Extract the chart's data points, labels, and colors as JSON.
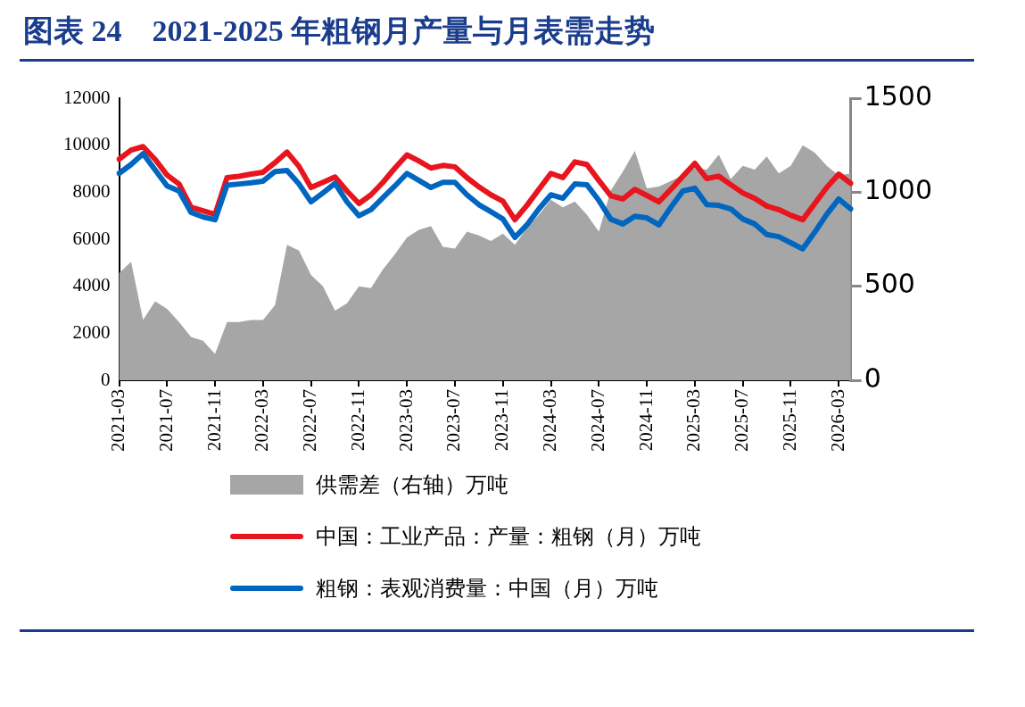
{
  "chart_data": {
    "type": "line",
    "title": "图表 24　2021-2025 年粗钢月产量与月表需走势",
    "categories": [
      "2021-03",
      null,
      null,
      null,
      "2021-07",
      null,
      null,
      null,
      "2021-11",
      null,
      null,
      null,
      "2022-03",
      null,
      null,
      null,
      "2022-07",
      null,
      null,
      null,
      "2022-11",
      null,
      null,
      null,
      "2023-03",
      null,
      null,
      null,
      "2023-07",
      null,
      null,
      null,
      "2023-11",
      null,
      null,
      null,
      "2024-03",
      null,
      null,
      null,
      "2024-07",
      null,
      null,
      null,
      "2024-11",
      null,
      null,
      null,
      "2025-03",
      null,
      null,
      null,
      "2025-07",
      null,
      null,
      null,
      "2025-11",
      null,
      null,
      null,
      "2026-03",
      null
    ],
    "series": [
      {
        "name": "供需差（右轴）万吨",
        "type": "area",
        "axis": "y2",
        "color": "#a6a6a6",
        "values": [
          570,
          630,
          320,
          420,
          380,
          310,
          230,
          210,
          140,
          310,
          310,
          320,
          320,
          400,
          720,
          690,
          560,
          500,
          370,
          410,
          500,
          490,
          590,
          670,
          760,
          800,
          820,
          710,
          700,
          790,
          770,
          740,
          780,
          720,
          810,
          880,
          960,
          920,
          950,
          880,
          790,
          1010,
          1110,
          1220,
          1020,
          1030,
          1060,
          1090,
          1130,
          1120,
          1200,
          1070,
          1140,
          1120,
          1190,
          1100,
          1140,
          1250,
          1210,
          1140,
          1090,
          1100
        ]
      },
      {
        "name": "中国：工业产品：产量：粗钢（月）万吨",
        "type": "line",
        "color": "#e8141e",
        "values": [
          9400,
          9790,
          9940,
          9400,
          8730,
          8350,
          7360,
          7210,
          7060,
          8620,
          8680,
          8770,
          8850,
          9260,
          9710,
          9100,
          8200,
          8420,
          8650,
          8050,
          7520,
          7890,
          8420,
          9030,
          9590,
          9330,
          9030,
          9140,
          9080,
          8620,
          8230,
          7890,
          7620,
          6830,
          7440,
          8120,
          8800,
          8620,
          9290,
          9180,
          8500,
          7850,
          7710,
          8120,
          7860,
          7590,
          8120,
          8680,
          9230,
          8580,
          8680,
          8320,
          7970,
          7740,
          7410,
          7260,
          7020,
          6830,
          7520,
          8200,
          8770,
          8380
        ]
      },
      {
        "name": "粗钢：表观消费量：中国（月）万吨",
        "type": "line",
        "color": "#0066bf",
        "values": [
          8800,
          9180,
          9640,
          8950,
          8270,
          8050,
          7140,
          6950,
          6830,
          8300,
          8350,
          8400,
          8470,
          8880,
          8920,
          8350,
          7590,
          7970,
          8380,
          7590,
          7000,
          7260,
          7770,
          8270,
          8800,
          8500,
          8200,
          8420,
          8420,
          7890,
          7470,
          7170,
          6860,
          6080,
          6610,
          7290,
          7890,
          7740,
          8350,
          8320,
          7650,
          6850,
          6650,
          6980,
          6910,
          6610,
          7360,
          8050,
          8170,
          7470,
          7440,
          7290,
          6860,
          6650,
          6200,
          6110,
          5850,
          5590,
          6300,
          7060,
          7710,
          7290
        ]
      }
    ],
    "ylim": [
      0,
      12000
    ],
    "yticks": [
      0,
      2000,
      4000,
      6000,
      8000,
      10000,
      12000
    ],
    "y2lim": [
      0,
      1500
    ],
    "y2ticks": [
      0,
      500,
      1000,
      1500
    ],
    "legend": "bottom",
    "marker": "none"
  }
}
